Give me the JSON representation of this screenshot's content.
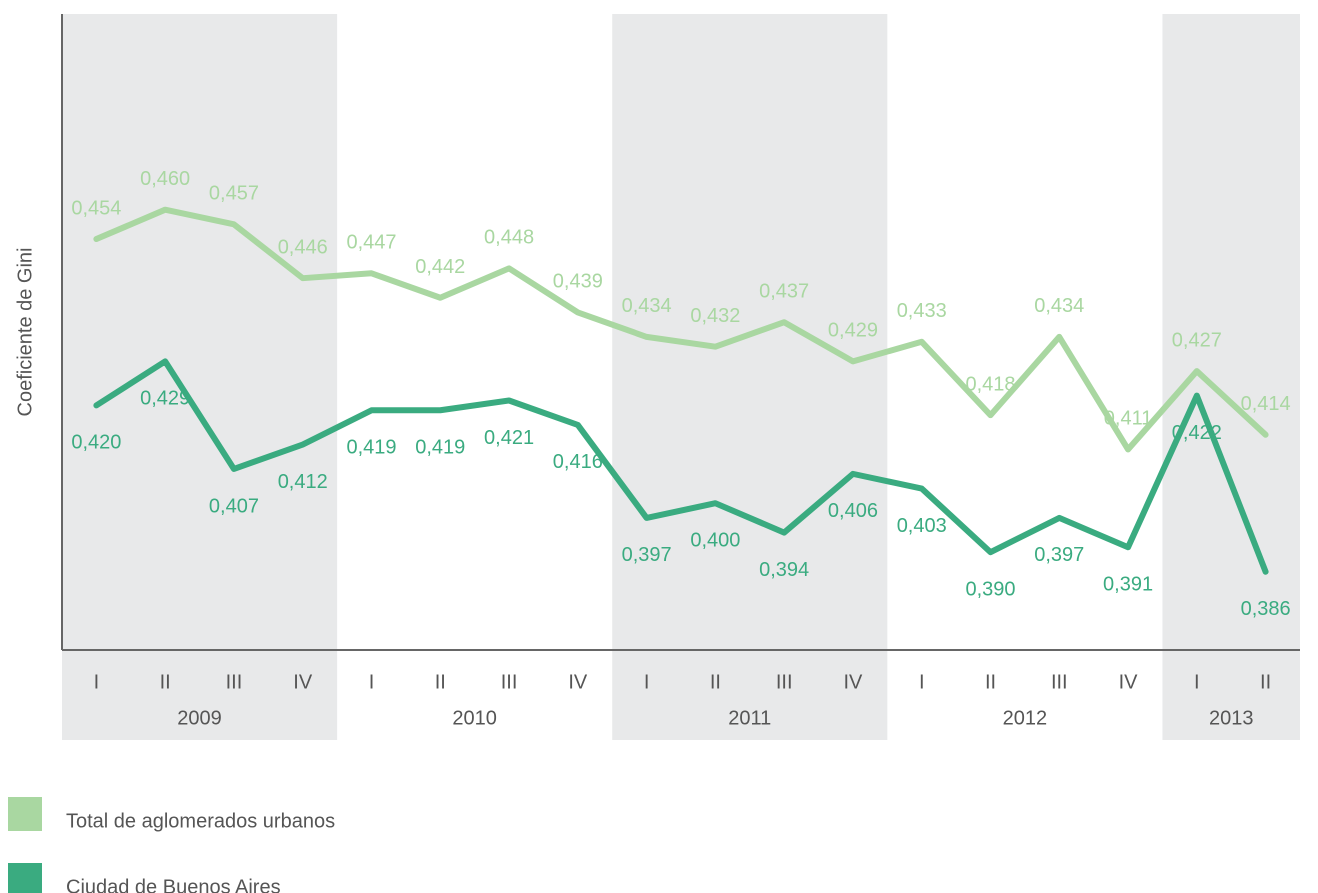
{
  "chart_data": {
    "type": "line",
    "y_axis_label": "Coeficiente de Gini",
    "categories": [
      "I",
      "II",
      "III",
      "IV",
      "I",
      "II",
      "III",
      "IV",
      "I",
      "II",
      "III",
      "IV",
      "I",
      "II",
      "III",
      "IV",
      "I",
      "II"
    ],
    "groups": [
      {
        "label": "2009",
        "count": 4
      },
      {
        "label": "2010",
        "count": 4
      },
      {
        "label": "2011",
        "count": 4
      },
      {
        "label": "2012",
        "count": 4
      },
      {
        "label": "2013",
        "count": 2
      }
    ],
    "ylim": [
      0.37,
      0.5
    ],
    "series": [
      {
        "name": "Total de aglomerados urbanos",
        "color": "#a9d7a1",
        "values": [
          0.454,
          0.46,
          0.457,
          0.446,
          0.447,
          0.442,
          0.448,
          0.439,
          0.434,
          0.432,
          0.437,
          0.429,
          0.433,
          0.418,
          0.434,
          0.411,
          0.427,
          0.414
        ],
        "value_labels": [
          "0,454",
          "0,460",
          "0,457",
          "0,446",
          "0,447",
          "0,442",
          "0,448",
          "0,439",
          "0,434",
          "0,432",
          "0,437",
          "0,429",
          "0,433",
          "0,418",
          "0,434",
          "0,411",
          "0,427",
          "0,414"
        ]
      },
      {
        "name": "Ciudad de Buenos Aires",
        "color": "#3aab80",
        "values": [
          0.42,
          0.429,
          0.407,
          0.412,
          0.419,
          0.419,
          0.421,
          0.416,
          0.397,
          0.4,
          0.394,
          0.406,
          0.403,
          0.39,
          0.397,
          0.391,
          0.422,
          0.386
        ],
        "value_labels": [
          "0,420",
          "0,429",
          "0,407",
          "0,412",
          "0,419",
          "0,419",
          "0,421",
          "0,416",
          "0,397",
          "0,400",
          "0,394",
          "0,406",
          "0,403",
          "0,390",
          "0,397",
          "0,391",
          "0,422",
          "0,386"
        ]
      }
    ]
  }
}
